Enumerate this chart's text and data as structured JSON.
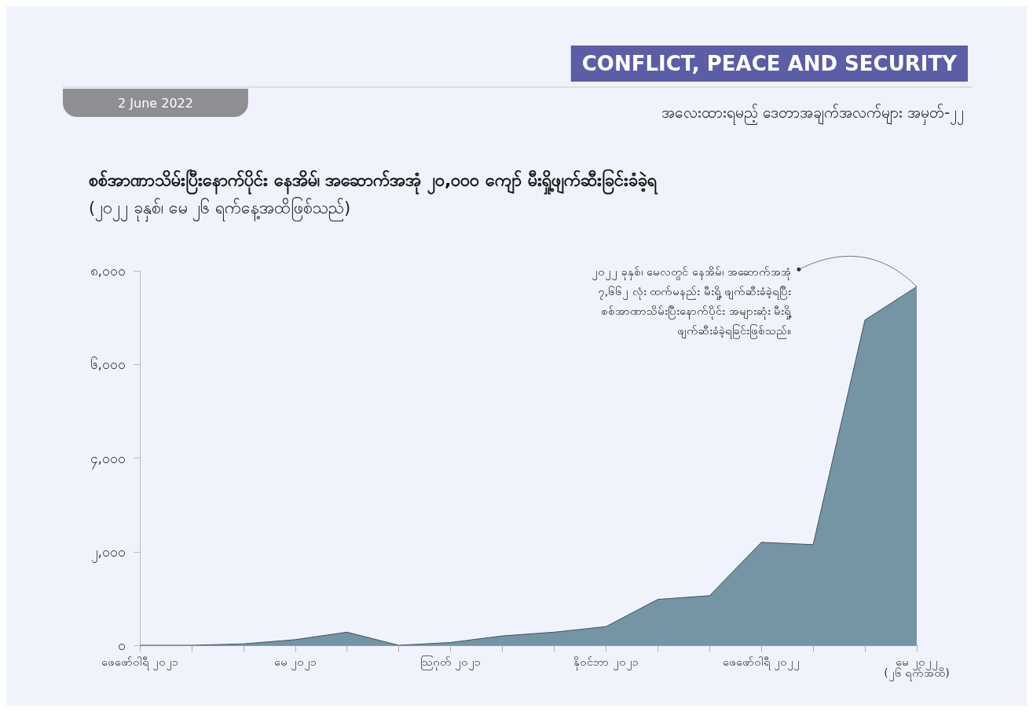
{
  "chart_data": {
    "type": "area",
    "title": "စစ်အာဏာသိမ်းပြီးနောက်ပိုင်း နေအိမ်၊ အဆောက်အအုံ ၂၀,၀၀၀ ကျော် မီးရှို့ဖျက်ဆီးခြင်းခံခဲ့ရ",
    "subtitle": "(၂၀၂၂ ခုနှစ်၊ မေ ၂၆ ရက်နေ့အထိဖြစ်သည်)",
    "categories": [
      "ဖေဖော်ဝါရီ ၂၀၂၁",
      null,
      null,
      "မေ ၂၀၂၁",
      null,
      null,
      "ဩဂုတ် ၂၀၂၁",
      null,
      null,
      "နိုဝင်ဘာ ၂၀၂၁",
      null,
      null,
      "ဖေဖော်ဝါရီ ၂၀၂၂",
      null,
      null,
      "မေ ၂၀၂၂\n(၂၆ ရက်အထိ)"
    ],
    "series": [
      {
        "color": "#7594a4",
        "values": [
          0,
          0,
          30,
          120,
          280,
          0,
          60,
          200,
          280,
          400,
          980,
          1060,
          2200,
          2150,
          6950,
          7662
        ]
      }
    ],
    "ylim": [
      0,
      8000
    ],
    "yticks": [
      {
        "value": 0,
        "label": "၀"
      },
      {
        "value": 2000,
        "label": "၂,၀၀၀"
      },
      {
        "value": 4000,
        "label": "၄,၀၀၀"
      },
      {
        "value": 6000,
        "label": "၆,၀၀၀"
      },
      {
        "value": 8000,
        "label": "၈,၀၀၀"
      }
    ],
    "grid": false,
    "marker": "none",
    "annotations": [
      "CONFLICT, PEACE AND SECURITY",
      "အလေးထားရမည့် ဒေတာအချက်အလက်များ အမှတ်-၂၂",
      "2 June 2022",
      {
        "text": "၂၀၂၂ ခုနှစ်၊ မေလတွင် နေအိမ်၊ အဆောက်အအုံ\n၇,၆၆၂ လုံး ထက်မနည်း မီးရှို့ ဖျက်ဆီးခံခဲ့ရပြီး\nစစ်အာဏာသိမ်းပြီးနောက်ပိုင်း အများဆုံး မီးရှို့\nဖျက်ဆီးခံခဲ့ရခြင်းဖြစ်သည်။",
        "x": "မေ ၂၀၂၂\n(၂၆ ရက်အထိ)",
        "y": 7662
      }
    ]
  }
}
